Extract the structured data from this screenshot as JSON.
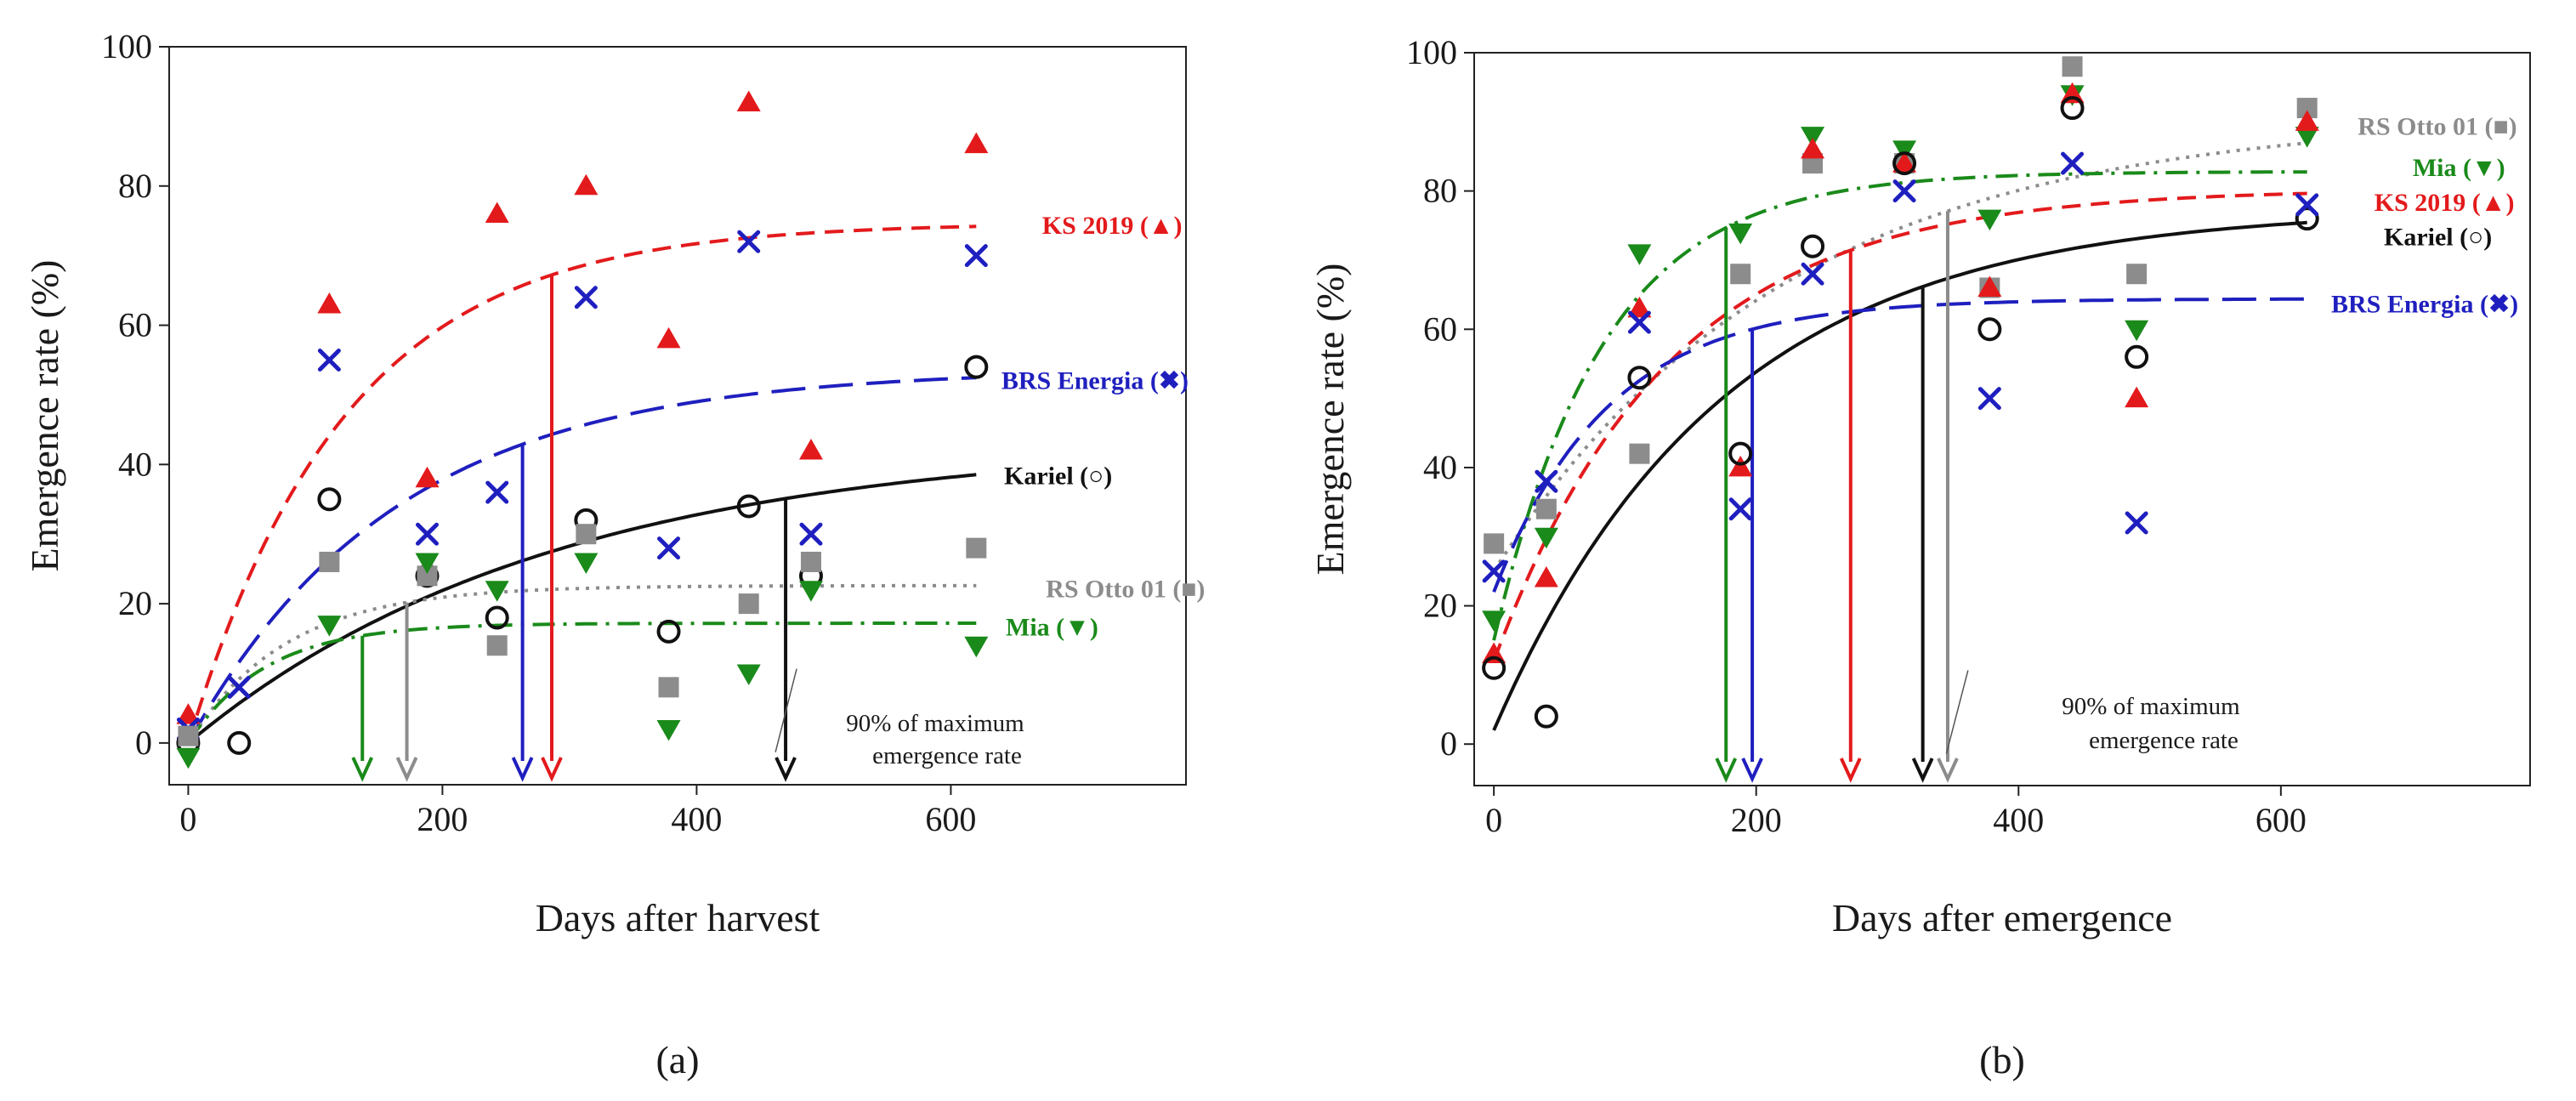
{
  "chart_data": [
    {
      "type": "scatter",
      "panel_label": "(a)",
      "xlabel": "Days after harvest",
      "ylabel": "Emergence rate (%)",
      "xlim": [
        -15,
        785
      ],
      "ylim": [
        -6,
        100
      ],
      "xticks": [
        0,
        200,
        400,
        600
      ],
      "xtick_labels": [
        "0",
        "200",
        "400",
        "600"
      ],
      "yticks": [
        0,
        20,
        40,
        60,
        80,
        100
      ],
      "ytick_labels": [
        "0",
        "20",
        "40",
        "60",
        "80",
        "100"
      ],
      "annotation": [
        "90% of maximum",
        "emergence rate"
      ],
      "annotation_anchor": [
        472,
        6
      ],
      "series": [
        {
          "name": "KS 2019",
          "marker": "triangle-up",
          "color": "#e31a1c",
          "line": "dashed",
          "curve": {
            "a": 74.7,
            "k": 0.00805,
            "y0": 0
          },
          "x": [
            0,
            111,
            188,
            243,
            313,
            378,
            441,
            490,
            620
          ],
          "y": [
            4,
            63,
            38,
            76,
            80,
            58,
            92,
            42,
            86
          ],
          "arrow_x": 286,
          "legend": {
            "label": "KS 2019",
            "symbol": "(▲)",
            "anchor": [
              782,
              74.5
            ]
          }
        },
        {
          "name": "BRS Energia",
          "marker": "x",
          "color": "#1f1fbf",
          "line": "longdash",
          "curve": {
            "a": 53.7,
            "k": 0.0061,
            "y0": 0
          },
          "x": [
            0,
            40,
            111,
            188,
            243,
            313,
            378,
            441,
            490,
            620
          ],
          "y": [
            2,
            8,
            55,
            30,
            36,
            64,
            28,
            72,
            30,
            70
          ],
          "arrow_x": 263,
          "legend": {
            "label": "BRS Energia",
            "symbol": "(✖)",
            "anchor": [
              787,
              52.2
            ]
          }
        },
        {
          "name": "Kariel",
          "marker": "circle",
          "color": "#111111",
          "line": "solid",
          "curve": {
            "a": 43.5,
            "k": 0.0035,
            "y0": 0
          },
          "x": [
            0,
            40,
            111,
            188,
            243,
            313,
            378,
            441,
            490,
            620
          ],
          "y": [
            0,
            0,
            35,
            24,
            18,
            32,
            16,
            34,
            24,
            54
          ],
          "arrow_x": 470,
          "legend": {
            "label": "Kariel",
            "symbol": "(○)",
            "anchor": [
              727,
              38.5
            ]
          }
        },
        {
          "name": "RS Otto 01",
          "marker": "square",
          "color": "#8c8c8c",
          "line": "dotted",
          "curve": {
            "a": 22.6,
            "k": 0.013,
            "y0": 0
          },
          "x": [
            0,
            111,
            188,
            243,
            313,
            378,
            441,
            490,
            620
          ],
          "y": [
            1,
            26,
            24,
            14,
            30,
            8,
            20,
            26,
            28
          ],
          "arrow_x": 172,
          "legend": {
            "label": "RS Otto 01",
            "symbol": "(■)",
            "anchor": [
              800,
              22.3
            ]
          }
        },
        {
          "name": "Mia",
          "marker": "triangle-down",
          "color": "#1a8a1a",
          "line": "dashdot",
          "curve": {
            "a": 17.2,
            "k": 0.0165,
            "y0": 0
          },
          "x": [
            0,
            111,
            188,
            243,
            313,
            378,
            441,
            490,
            620
          ],
          "y": [
            -2,
            17,
            26,
            22,
            26,
            2,
            10,
            22,
            14
          ],
          "arrow_x": 137,
          "legend": {
            "label": "Mia",
            "symbol": "(▼)",
            "anchor": [
              716,
              16.8
            ]
          }
        }
      ]
    },
    {
      "type": "scatter",
      "panel_label": "(b)",
      "xlabel": "Days after emergence",
      "ylabel": "Emergence rate (%)",
      "xlim": [
        -15,
        790
      ],
      "ylim": [
        -6,
        100
      ],
      "xticks": [
        0,
        200,
        400,
        600
      ],
      "xtick_labels": [
        "0",
        "200",
        "400",
        "600"
      ],
      "yticks": [
        0,
        20,
        40,
        60,
        80,
        100
      ],
      "ytick_labels": [
        "0",
        "20",
        "40",
        "60",
        "80",
        "100"
      ],
      "annotation": [
        "90% of maximum",
        "emergence rate"
      ],
      "annotation_anchor": [
        355,
        6
      ],
      "series": [
        {
          "name": "RS Otto 01",
          "marker": "square",
          "color": "#8c8c8c",
          "line": "dotted",
          "curve": {
            "a": 91.0,
            "k": 0.0045,
            "y0": 25
          },
          "x": [
            0,
            40,
            111,
            188,
            243,
            313,
            378,
            441,
            490,
            620
          ],
          "y": [
            29,
            34,
            42,
            68,
            84,
            84,
            66,
            98,
            68,
            92
          ],
          "arrow_x": 346,
          "legend": {
            "label": "RS Otto 01",
            "symbol": "(■)",
            "anchor": [
              780,
              89.5
            ]
          }
        },
        {
          "name": "Mia",
          "marker": "triangle-down",
          "color": "#1a8a1a",
          "line": "dashdot",
          "curve": {
            "a": 82.8,
            "k": 0.012,
            "y0": 15
          },
          "x": [
            0,
            40,
            111,
            188,
            243,
            313,
            378,
            441,
            490,
            620
          ],
          "y": [
            18,
            30,
            71,
            74,
            88,
            86,
            76,
            94,
            60,
            88
          ],
          "arrow_x": 177,
          "legend": {
            "label": "Mia",
            "symbol": "(▼)",
            "anchor": [
              771,
              83.5
            ]
          }
        },
        {
          "name": "KS 2019",
          "marker": "triangle-up",
          "color": "#e31a1c",
          "line": "dashed",
          "curve": {
            "a": 80.3,
            "k": 0.0075,
            "y0": 12
          },
          "x": [
            0,
            40,
            111,
            188,
            243,
            313,
            378,
            441,
            490,
            620
          ],
          "y": [
            13,
            24,
            63,
            40,
            86,
            84,
            66,
            94,
            50,
            90
          ],
          "arrow_x": 272,
          "legend": {
            "label": "KS 2019",
            "symbol": "(▲)",
            "anchor": [
              778,
              78.5
            ]
          }
        },
        {
          "name": "Kariel",
          "marker": "circle",
          "color": "#111111",
          "line": "solid",
          "curve": {
            "a": 77.5,
            "k": 0.0058,
            "y0": 2
          },
          "x": [
            0,
            40,
            111,
            188,
            243,
            313,
            378,
            441,
            490,
            620
          ],
          "y": [
            11,
            4,
            53,
            42,
            72,
            84,
            60,
            92,
            56,
            76
          ],
          "arrow_x": 327,
          "legend": {
            "label": "Kariel",
            "symbol": "(○)",
            "anchor": [
              761,
              73.5
            ]
          }
        },
        {
          "name": "BRS Energia",
          "marker": "x",
          "color": "#1f1fbf",
          "line": "longdash",
          "curve": {
            "a": 64.4,
            "k": 0.0115,
            "y0": 22
          },
          "x": [
            0,
            40,
            111,
            188,
            243,
            313,
            378,
            441,
            490,
            620
          ],
          "y": [
            25,
            38,
            61,
            34,
            68,
            80,
            50,
            84,
            32,
            78
          ],
          "arrow_x": 197,
          "legend": {
            "label": "BRS Energia",
            "symbol": "(✖)",
            "anchor": [
              781,
              63.8
            ]
          }
        }
      ]
    }
  ]
}
